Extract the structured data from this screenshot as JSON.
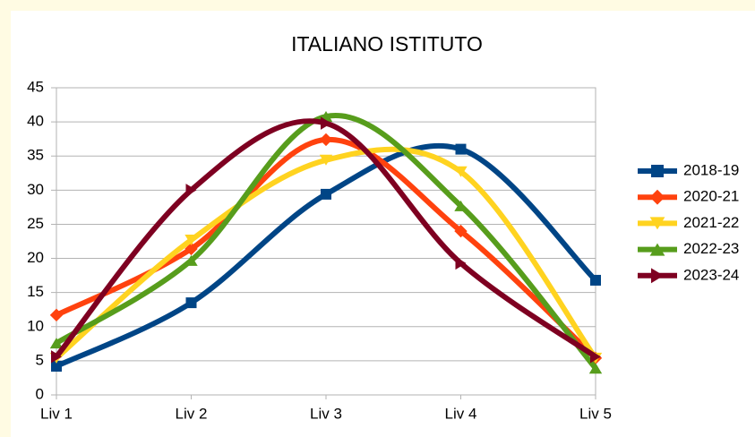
{
  "chart_data": {
    "type": "line",
    "smooth": true,
    "title": "ITALIANO ISTITUTO",
    "categories": [
      "Liv 1",
      "Liv 2",
      "Liv 3",
      "Liv 4",
      "Liv 5"
    ],
    "series": [
      {
        "name": "2018-19",
        "color": "#004586",
        "marker": "square",
        "values": [
          4.2,
          13.5,
          29.4,
          36,
          16.8
        ]
      },
      {
        "name": "2020-21",
        "color": "#ff420e",
        "marker": "diamond",
        "values": [
          11.7,
          21.4,
          37.4,
          24,
          5.4
        ]
      },
      {
        "name": "2021-22",
        "color": "#ffd320",
        "marker": "triangle-down",
        "values": [
          5.4,
          22.7,
          34.4,
          32.7,
          5.4
        ]
      },
      {
        "name": "2022-23",
        "color": "#579d1c",
        "marker": "triangle-up",
        "values": [
          7.6,
          19.7,
          40.8,
          27.7,
          3.9
        ]
      },
      {
        "name": "2023-24",
        "color": "#7e0021",
        "marker": "triangle-right",
        "values": [
          5.6,
          30,
          39.8,
          19.3,
          5.6
        ]
      }
    ],
    "ylim": [
      0,
      45
    ],
    "yticks": [
      0,
      5,
      10,
      15,
      20,
      25,
      30,
      35,
      40,
      45
    ],
    "grid": true,
    "legend": "right"
  }
}
